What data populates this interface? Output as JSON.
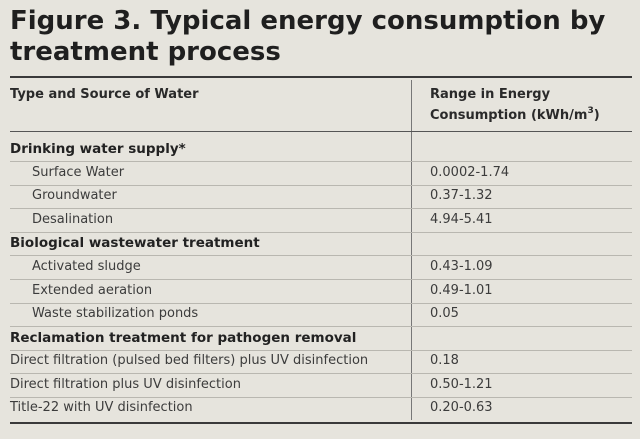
{
  "title": "Figure 3. Typical energy consumption by treatment process",
  "headers": {
    "left": "Type and Source of Water",
    "right_prefix": "Range in Energy Consumption (kWh/m",
    "right_sup": "3",
    "right_suffix": ")"
  },
  "sections": [
    {
      "label": "Drinking water supply*",
      "rows": [
        {
          "name": "Surface Water",
          "value": "0.0002-1.74"
        },
        {
          "name": "Groundwater",
          "value": "0.37-1.32"
        },
        {
          "name": "Desalination",
          "value": "4.94-5.41"
        }
      ]
    },
    {
      "label": "Biological wastewater treatment",
      "rows": [
        {
          "name": "Activated sludge",
          "value": "0.43-1.09"
        },
        {
          "name": "Extended aeration",
          "value": "0.49-1.01"
        },
        {
          "name": "Waste stabilization ponds",
          "value": "0.05"
        }
      ]
    },
    {
      "label": "Reclamation treatment for pathogen removal",
      "rows": [
        {
          "name": "Direct filtration (pulsed bed filters) plus UV disinfection",
          "value": "0.18"
        },
        {
          "name": "Direct filtration plus UV disinfection",
          "value": "0.50-1.21"
        },
        {
          "name": "Title-22 with UV disinfection",
          "value": "0.20-0.63"
        }
      ]
    }
  ]
}
